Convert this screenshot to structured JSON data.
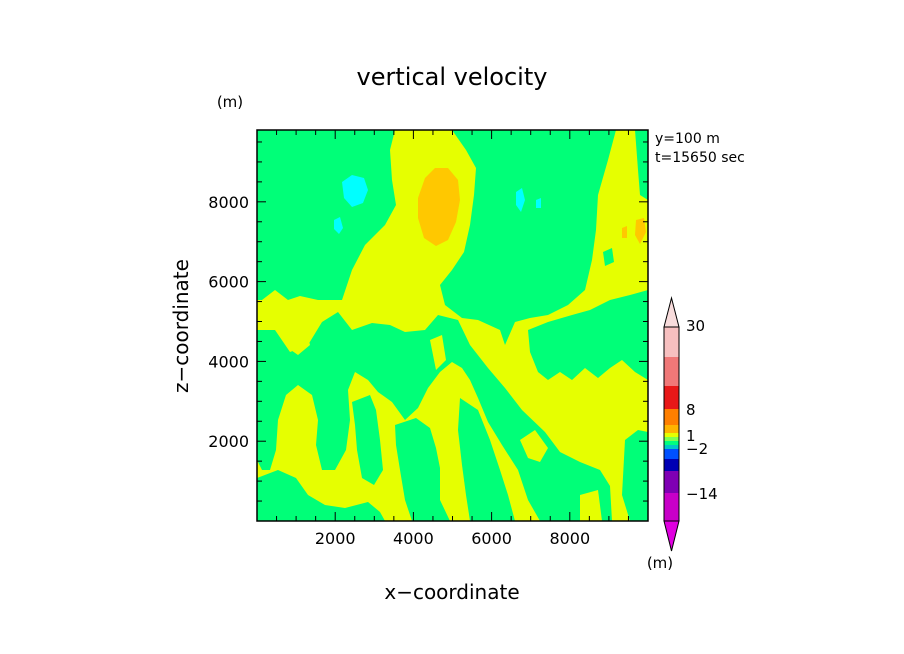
{
  "chart_data": {
    "type": "heatmap",
    "title": "vertical velocity",
    "xlabel": "x−coordinate",
    "ylabel": "z−coordinate",
    "y_unit": "(m)",
    "annotations": [
      "y=100 m",
      "t=15650 sec"
    ],
    "xlim": [
      0,
      10000
    ],
    "ylim": [
      0,
      9800
    ],
    "x_ticks": [
      "2000",
      "4000",
      "6000",
      "8000"
    ],
    "y_ticks": [
      "2000",
      "4000",
      "6000",
      "8000"
    ],
    "x_tick_values": [
      2000,
      4000,
      6000,
      8000
    ],
    "y_tick_values": [
      2000,
      4000,
      6000,
      8000
    ],
    "colorbar": {
      "unit": "(m)",
      "labels": [
        "30",
        "8",
        "1",
        "−2",
        "−14"
      ],
      "colors": [
        "#f7c0c0",
        "#f07878",
        "#e81818",
        "#ff7f00",
        "#ffb400",
        "#e6ff00",
        "#7fff50",
        "#00ff80",
        "#00c8c8",
        "#0050ff",
        "#0000b4",
        "#7f00b4",
        "#c800c8"
      ],
      "tip_top_color": "#f8dcdc",
      "tip_bottom_color": "#e000e0"
    },
    "field_colors": {
      "background": "#e6ff00",
      "negative_small": "#00ff78",
      "negative_medium": "#00ffff",
      "positive_medium": "#ffc800"
    }
  }
}
